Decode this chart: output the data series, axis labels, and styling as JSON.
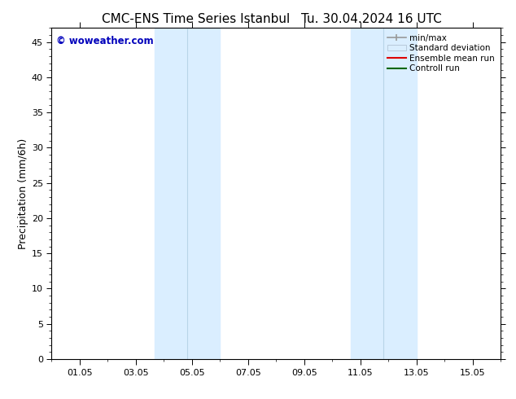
{
  "title_left": "CMC-ENS Time Series Istanbul",
  "title_right": "Tu. 30.04.2024 16 UTC",
  "ylabel": "Precipitation (mm/6h)",
  "watermark": "© woweather.com",
  "watermark_color": "#0000bb",
  "xticklabels": [
    "01.05",
    "03.05",
    "05.05",
    "07.05",
    "09.05",
    "11.05",
    "13.05",
    "15.05"
  ],
  "xtick_positions": [
    1,
    3,
    5,
    7,
    9,
    11,
    13,
    15
  ],
  "xlim": [
    0.0,
    16.0
  ],
  "ylim": [
    0,
    47
  ],
  "yticks": [
    0,
    5,
    10,
    15,
    20,
    25,
    30,
    35,
    40,
    45
  ],
  "shaded_band1_x0": 3.67,
  "shaded_band1_xmid": 4.83,
  "shaded_band1_x1": 6.0,
  "shaded_band2_x0": 10.67,
  "shaded_band2_xmid": 11.83,
  "shaded_band2_x1": 13.0,
  "shade_color": "#daeeff",
  "shade_line_color": "#b8d4e8",
  "bg_color": "#ffffff",
  "plot_bg_color": "#ffffff",
  "title_fontsize": 11,
  "tick_fontsize": 8,
  "ylabel_fontsize": 9
}
